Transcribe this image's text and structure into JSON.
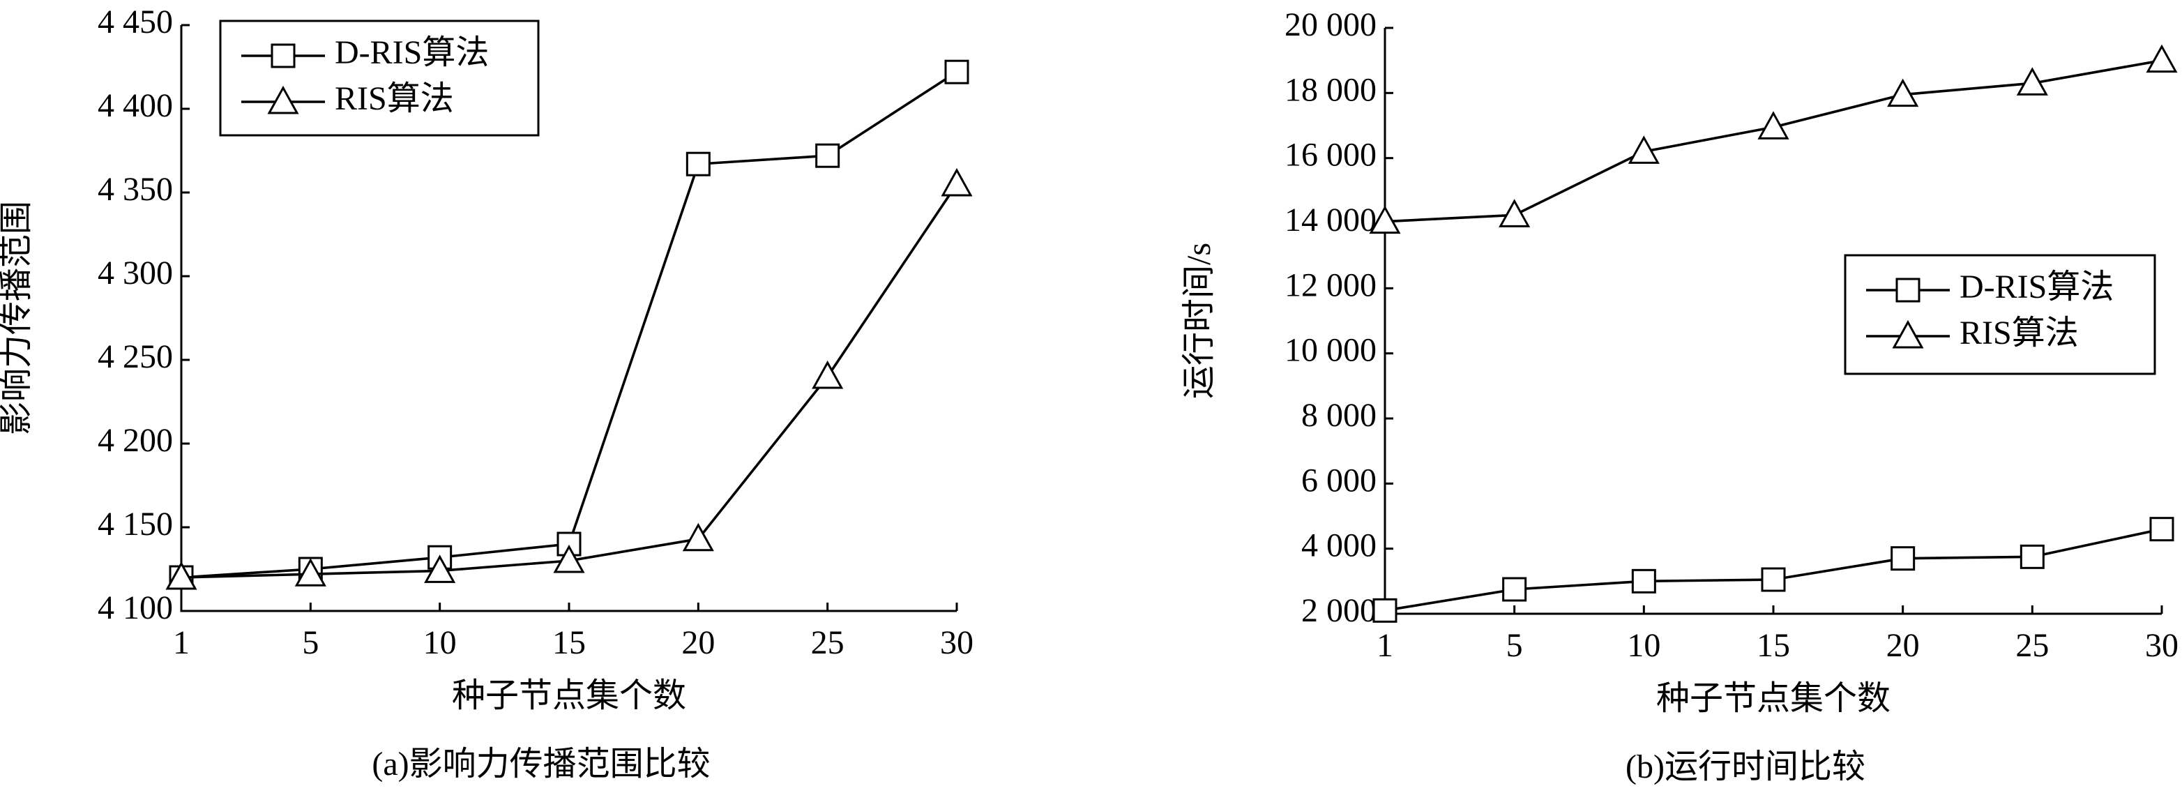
{
  "chart_data": [
    {
      "type": "line",
      "caption": "(a)影响力传播范围比较",
      "x_label": "种子节点集个数",
      "y_label": "影响力传播范围",
      "categories": [
        "1",
        "5",
        "10",
        "15",
        "20",
        "25",
        "30"
      ],
      "ylim": [
        4100,
        4450
      ],
      "yticks": [
        {
          "value": 4100,
          "label": "4 100"
        },
        {
          "value": 4150,
          "label": "4 150"
        },
        {
          "value": 4200,
          "label": "4 200"
        },
        {
          "value": 4250,
          "label": "4 250"
        },
        {
          "value": 4300,
          "label": "4 300"
        },
        {
          "value": 4350,
          "label": "4 350"
        },
        {
          "value": 4400,
          "label": "4 400"
        },
        {
          "value": 4450,
          "label": "4 450"
        }
      ],
      "legend": "upper left",
      "series": [
        {
          "name": "D-RIS算法",
          "color": "#000000",
          "marker": "square",
          "values": [
            4120,
            4125,
            4132,
            4140,
            4367,
            4372,
            4422
          ]
        },
        {
          "name": "RIS算法",
          "color": "#000000",
          "marker": "triangle",
          "values": [
            4120,
            4122,
            4124,
            4130,
            4143,
            4240,
            4355
          ]
        }
      ]
    },
    {
      "type": "line",
      "caption": "(b)运行时间比较",
      "x_label": "种子节点集个数",
      "y_label": "运行时间/s",
      "categories": [
        "1",
        "5",
        "10",
        "15",
        "20",
        "25",
        "30"
      ],
      "ylim": [
        2000,
        20000
      ],
      "yticks": [
        {
          "value": 2000,
          "label": "2 000"
        },
        {
          "value": 4000,
          "label": "4 000"
        },
        {
          "value": 6000,
          "label": "6 000"
        },
        {
          "value": 8000,
          "label": "8 000"
        },
        {
          "value": 10000,
          "label": "10 000"
        },
        {
          "value": 12000,
          "label": "12 000"
        },
        {
          "value": 14000,
          "label": "14 000"
        },
        {
          "value": 16000,
          "label": "16 000"
        },
        {
          "value": 18000,
          "label": "18 000"
        },
        {
          "value": 20000,
          "label": "20 000"
        }
      ],
      "legend": "center right",
      "series": [
        {
          "name": "D-RIS算法",
          "color": "#000000",
          "marker": "square",
          "values": [
            2100,
            2750,
            3000,
            3050,
            3700,
            3750,
            4600
          ]
        },
        {
          "name": "RIS算法",
          "color": "#000000",
          "marker": "triangle",
          "values": [
            14050,
            14250,
            16200,
            16950,
            17950,
            18300,
            19000
          ]
        }
      ]
    }
  ]
}
